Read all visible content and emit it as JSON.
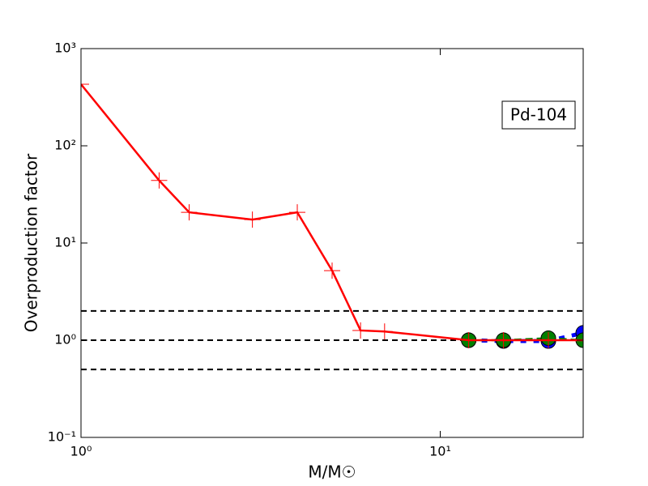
{
  "chart_data": {
    "type": "line",
    "annotation": "Pd-104",
    "xlabel": "M/M☉",
    "ylabel": "Overproduction factor",
    "xscale": "log",
    "yscale": "log",
    "xlim": [
      1,
      25
    ],
    "ylim": [
      0.1,
      1000
    ],
    "xticks": [
      {
        "value": 1,
        "label": "10⁰"
      },
      {
        "value": 10,
        "label": "10¹"
      }
    ],
    "yticks": [
      {
        "value": 0.1,
        "label": "10⁻¹"
      },
      {
        "value": 1,
        "label": "10⁰"
      },
      {
        "value": 10,
        "label": "10¹"
      },
      {
        "value": 100,
        "label": "10²"
      },
      {
        "value": 1000,
        "label": "10³"
      }
    ],
    "hlines": [
      2,
      1,
      0.5
    ],
    "hline_color": "#000000",
    "series": [
      {
        "color": "#0000ff",
        "marker": "circle",
        "linestyle": "dotted",
        "x": [
          12,
          15,
          20,
          25
        ],
        "values": [
          1.0,
          0.98,
          0.98,
          1.19
        ]
      },
      {
        "color": "#008000",
        "marker": "circle",
        "linestyle": "dashed",
        "x": [
          12,
          15,
          20,
          25
        ],
        "values": [
          1.0,
          1.0,
          1.05,
          1.0
        ]
      },
      {
        "color": "#ff0000",
        "marker": "plus",
        "linestyle": "solid",
        "x": [
          1,
          1.65,
          2,
          3,
          4,
          5,
          6,
          7,
          12,
          15,
          20,
          25
        ],
        "values": [
          430,
          44,
          20.7,
          17.4,
          20.7,
          5.2,
          1.26,
          1.23,
          1.0,
          1.0,
          1.0,
          1.0
        ]
      }
    ]
  }
}
